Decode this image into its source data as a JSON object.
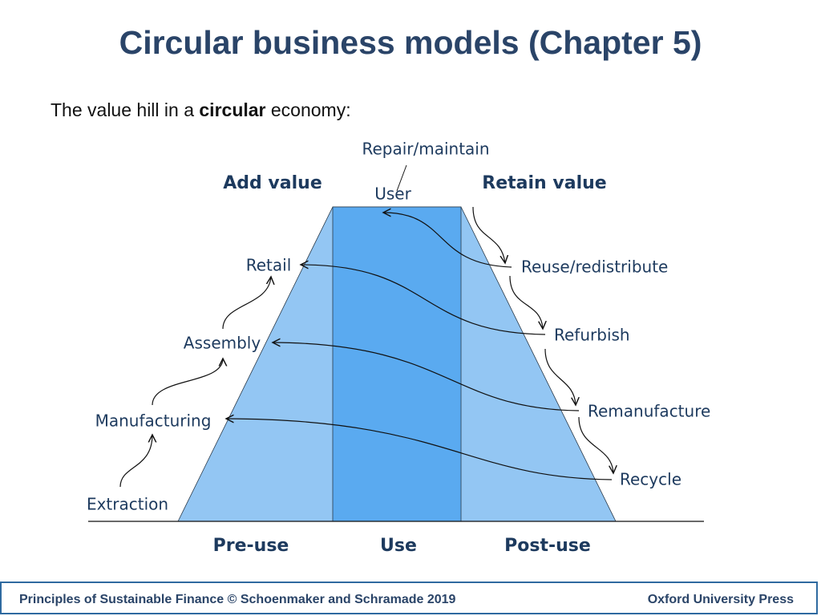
{
  "title": "Circular business models (Chapter 5)",
  "subtitle": {
    "before": "The value hill in a",
    "bold": "circular",
    "after": "economy:"
  },
  "diagram": {
    "headers": {
      "left": "Add value",
      "right": "Retain value"
    },
    "top": {
      "repair": "Repair/maintain",
      "user": "User"
    },
    "left_steps": [
      "Retail",
      "Assembly",
      "Manufacturing",
      "Extraction"
    ],
    "right_steps": [
      "Reuse/redistribute",
      "Refurbish",
      "Remanufacture",
      "Recycle"
    ],
    "phases": [
      "Pre-use",
      "Use",
      "Post-use"
    ]
  },
  "footer": {
    "left": "Principles of Sustainable Finance © Schoenmaker and Schramade 2019",
    "right": "Oxford University Press"
  }
}
